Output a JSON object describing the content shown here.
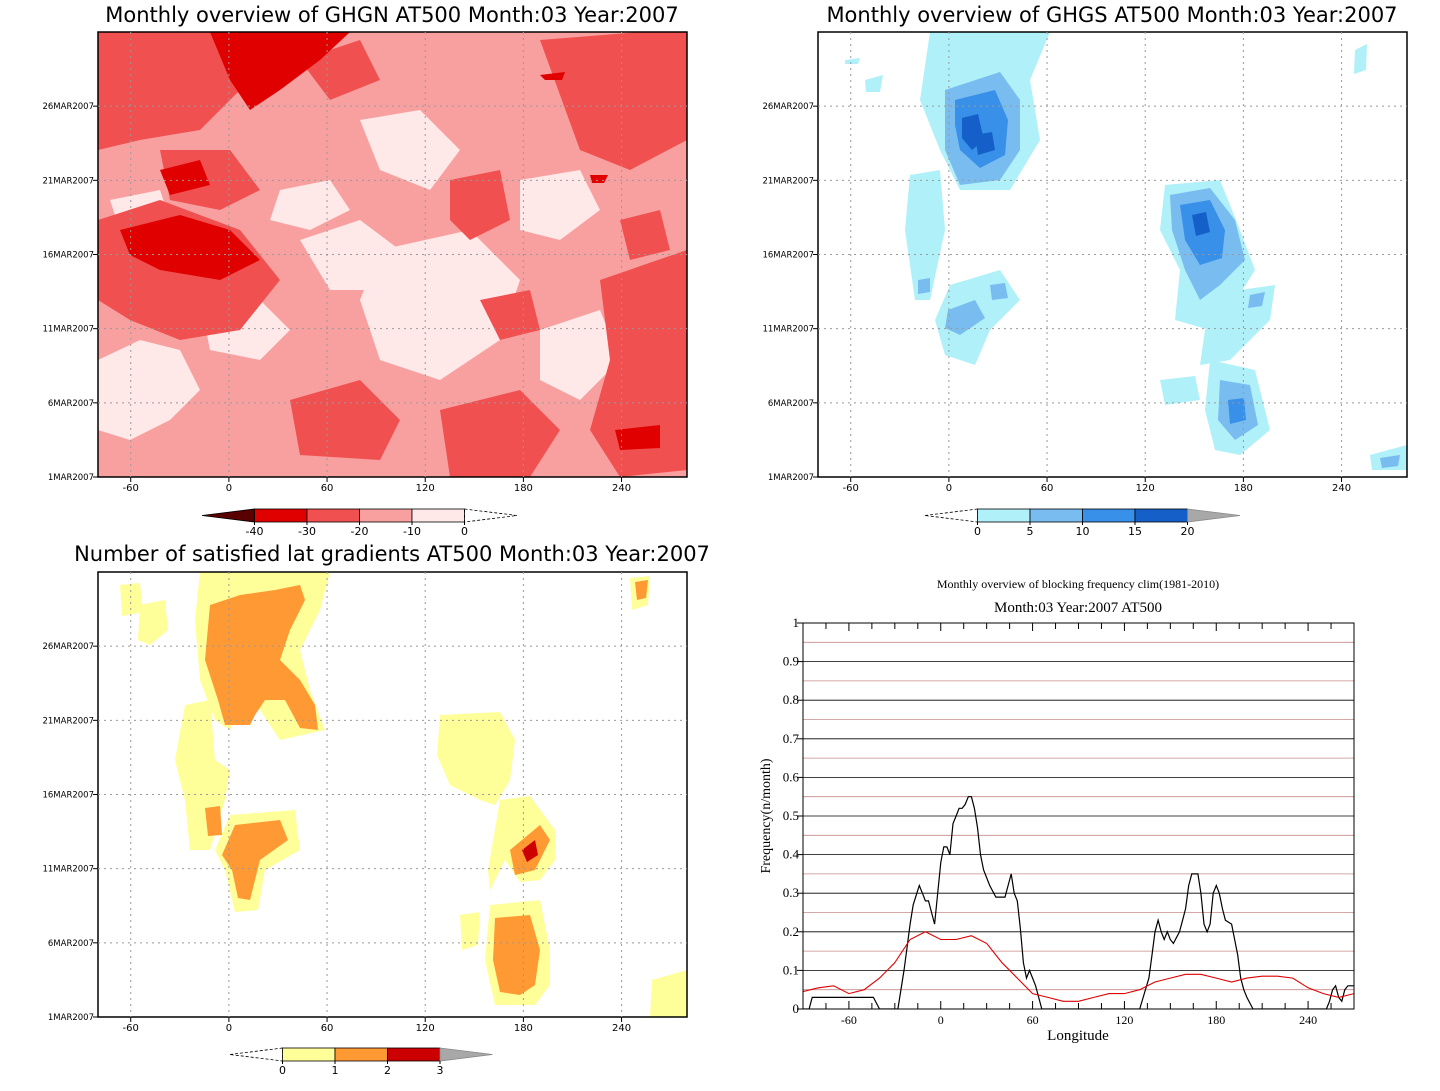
{
  "panels": [
    {
      "title": "Monthly overview of GHGN AT500 Month:03 Year:2007",
      "y_ticks": [
        "1MAR2007",
        "6MAR2007",
        "11MAR2007",
        "16MAR2007",
        "21MAR2007",
        "26MAR2007"
      ],
      "x_ticks": [
        "-60",
        "0",
        "60",
        "120",
        "180",
        "240"
      ],
      "colorbar": {
        "labels": [
          "-40",
          "-30",
          "-20",
          "-10",
          "0"
        ],
        "colors": [
          "#5a0000",
          "#e00000",
          "#f05050",
          "#f8a0a0",
          "#ffe8e8"
        ]
      }
    },
    {
      "title": "Monthly overview of GHGS AT500 Month:03 Year:2007",
      "y_ticks": [
        "1MAR2007",
        "6MAR2007",
        "11MAR2007",
        "16MAR2007",
        "21MAR2007",
        "26MAR2007"
      ],
      "x_ticks": [
        "-60",
        "0",
        "60",
        "120",
        "180",
        "240"
      ],
      "colorbar": {
        "labels": [
          "0",
          "5",
          "10",
          "15",
          "20"
        ],
        "colors": [
          "#b0f0f8",
          "#78bcf0",
          "#3890e8",
          "#1460c8"
        ]
      }
    },
    {
      "title": "Number of satisfied lat gradients AT500 Month:03 Year:2007",
      "y_ticks": [
        "1MAR2007",
        "6MAR2007",
        "11MAR2007",
        "16MAR2007",
        "21MAR2007",
        "26MAR2007"
      ],
      "x_ticks": [
        "-60",
        "0",
        "60",
        "120",
        "180",
        "240"
      ],
      "colorbar": {
        "labels": [
          "0",
          "1",
          "2",
          "3"
        ],
        "colors": [
          "#ffff99",
          "#ff9933",
          "#cc0000"
        ]
      }
    }
  ],
  "chart_data": {
    "type": "line",
    "title": "Monthly overview of blocking frequency clim(1981-2010)",
    "subtitle": "Month:03 Year:2007  AT500",
    "xlabel": "Longitude",
    "ylabel": "Frequency(n/month)",
    "xlim": [
      -90,
      270
    ],
    "ylim": [
      0,
      1
    ],
    "x_ticks": [
      -60,
      0,
      60,
      120,
      180,
      240
    ],
    "y_ticks": [
      "0",
      "0.1",
      "0.2",
      "0.3",
      "0.4",
      "0.5",
      "0.6",
      "0.7",
      "0.8",
      "0.9",
      "1"
    ],
    "grid": true,
    "series": [
      {
        "color": "#000000",
        "x": [
          -90,
          -86,
          -84,
          -60,
          -56,
          -50,
          -44,
          -40,
          -36,
          -32,
          -30,
          -28,
          -24,
          -22,
          -20,
          -18,
          -14,
          -12,
          -10,
          -8,
          -4,
          0,
          2,
          4,
          6,
          8,
          10,
          12,
          14,
          16,
          18,
          20,
          22,
          24,
          26,
          28,
          32,
          36,
          40,
          42,
          44,
          46,
          48,
          50,
          52,
          54,
          56,
          58,
          60,
          62,
          64,
          66,
          70,
          100,
          120,
          130,
          136,
          138,
          140,
          142,
          144,
          146,
          148,
          150,
          152,
          156,
          158,
          160,
          162,
          164,
          166,
          168,
          170,
          172,
          174,
          176,
          178,
          180,
          182,
          184,
          186,
          190,
          194,
          196,
          198,
          200,
          204,
          210,
          240,
          246,
          250,
          252,
          254,
          256,
          258,
          260,
          262,
          264,
          266,
          268,
          270
        ],
        "y": [
          0,
          0,
          0.03,
          0.03,
          0.03,
          0.03,
          0.03,
          0,
          0,
          0,
          0,
          0,
          0.1,
          0.16,
          0.22,
          0.27,
          0.32,
          0.3,
          0.28,
          0.28,
          0.22,
          0.38,
          0.42,
          0.42,
          0.4,
          0.48,
          0.5,
          0.52,
          0.52,
          0.53,
          0.55,
          0.55,
          0.52,
          0.47,
          0.4,
          0.36,
          0.32,
          0.29,
          0.29,
          0.29,
          0.32,
          0.35,
          0.3,
          0.28,
          0.21,
          0.12,
          0.08,
          0.1,
          0.08,
          0.06,
          0.03,
          0,
          0,
          0,
          0,
          0,
          0.08,
          0.14,
          0.2,
          0.23,
          0.2,
          0.18,
          0.2,
          0.18,
          0.17,
          0.2,
          0.23,
          0.26,
          0.32,
          0.35,
          0.35,
          0.35,
          0.3,
          0.22,
          0.2,
          0.22,
          0.3,
          0.32,
          0.3,
          0.26,
          0.23,
          0.22,
          0.14,
          0.08,
          0.05,
          0.03,
          0,
          0,
          0,
          0,
          0,
          0,
          0.02,
          0.05,
          0.06,
          0.03,
          0.02,
          0.05,
          0.06,
          0.06,
          0.06
        ]
      },
      {
        "color": "#e00000",
        "x": [
          -90,
          -80,
          -70,
          -60,
          -50,
          -40,
          -30,
          -20,
          -10,
          0,
          10,
          20,
          30,
          40,
          50,
          60,
          70,
          80,
          90,
          100,
          110,
          120,
          130,
          140,
          150,
          160,
          170,
          180,
          190,
          200,
          210,
          220,
          230,
          240,
          250,
          260,
          270
        ],
        "y": [
          0.045,
          0.055,
          0.06,
          0.04,
          0.05,
          0.08,
          0.12,
          0.18,
          0.2,
          0.18,
          0.18,
          0.19,
          0.17,
          0.12,
          0.08,
          0.04,
          0.03,
          0.02,
          0.02,
          0.03,
          0.04,
          0.04,
          0.05,
          0.07,
          0.08,
          0.09,
          0.09,
          0.08,
          0.07,
          0.08,
          0.085,
          0.085,
          0.08,
          0.055,
          0.04,
          0.03,
          0.04
        ]
      }
    ]
  }
}
